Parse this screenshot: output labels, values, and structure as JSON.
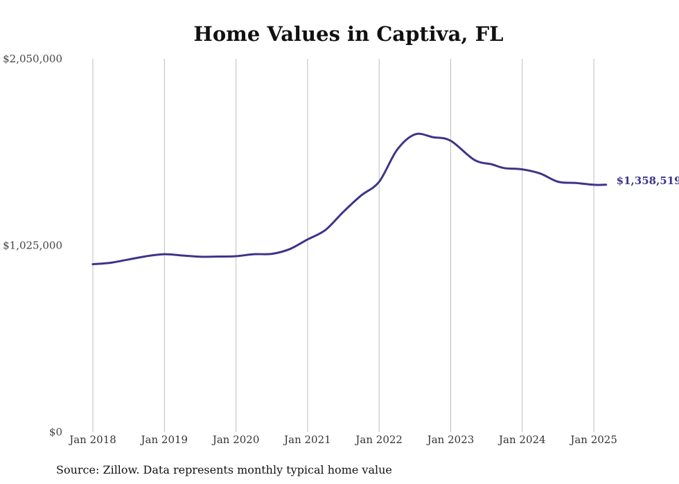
{
  "chart_data": {
    "type": "line",
    "title": "Home Values in Captiva, FL",
    "source": "Source: Zillow. Data represents monthly typical home value",
    "ylim": [
      0,
      2050000
    ],
    "y_ticks": [
      {
        "value": 0,
        "label": "$0"
      },
      {
        "value": 1025000,
        "label": "$1,025,000"
      },
      {
        "value": 2050000,
        "label": "$2,050,000"
      }
    ],
    "x_ticks": [
      {
        "value": 2018.0,
        "label": "Jan 2018"
      },
      {
        "value": 2019.0,
        "label": "Jan 2019"
      },
      {
        "value": 2020.0,
        "label": "Jan 2020"
      },
      {
        "value": 2021.0,
        "label": "Jan 2021"
      },
      {
        "value": 2022.0,
        "label": "Jan 2022"
      },
      {
        "value": 2023.0,
        "label": "Jan 2023"
      },
      {
        "value": 2024.0,
        "label": "Jan 2024"
      },
      {
        "value": 2025.0,
        "label": "Jan 2025"
      }
    ],
    "grid": "vertical",
    "line_color": "#3d3489",
    "end_label": "$1,358,519",
    "series": [
      {
        "points": [
          [
            2018.0,
            922000
          ],
          [
            2018.25,
            930000
          ],
          [
            2018.5,
            948000
          ],
          [
            2018.75,
            966000
          ],
          [
            2019.0,
            977000
          ],
          [
            2019.25,
            970000
          ],
          [
            2019.5,
            963000
          ],
          [
            2019.75,
            964000
          ],
          [
            2020.0,
            966000
          ],
          [
            2020.25,
            977000
          ],
          [
            2020.5,
            979000
          ],
          [
            2020.75,
            1005000
          ],
          [
            2021.0,
            1058000
          ],
          [
            2021.25,
            1110000
          ],
          [
            2021.5,
            1210000
          ],
          [
            2021.75,
            1300000
          ],
          [
            2022.0,
            1375000
          ],
          [
            2022.25,
            1550000
          ],
          [
            2022.5,
            1635000
          ],
          [
            2022.75,
            1620000
          ],
          [
            2023.0,
            1600000
          ],
          [
            2023.33,
            1495000
          ],
          [
            2023.58,
            1470000
          ],
          [
            2023.75,
            1450000
          ],
          [
            2024.0,
            1443000
          ],
          [
            2024.25,
            1420000
          ],
          [
            2024.5,
            1375000
          ],
          [
            2024.75,
            1368000
          ],
          [
            2025.0,
            1358000
          ],
          [
            2025.17,
            1358519
          ]
        ]
      }
    ]
  }
}
